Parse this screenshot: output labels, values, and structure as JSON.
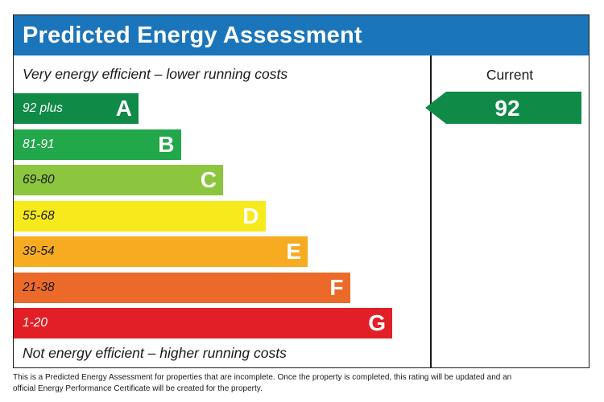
{
  "title": "Predicted Energy Assessment",
  "top_caption": "Very energy efficient – lower running costs",
  "bottom_caption": "Not energy efficient – higher running costs",
  "current_header": "Current",
  "footnote": "This is a Predicted Energy Assessment for properties that are incomplete. Once the property is completed, this rating will be updated and an official Energy Performance Certificate will be created for the property.",
  "colors": {
    "title_bar": "#1b75bb",
    "current_arrow": "#0f8a47"
  },
  "chart_data": {
    "type": "bar",
    "bands": [
      {
        "letter": "A",
        "range": "92 plus",
        "color": "#0f8a47",
        "range_color": "#ffffff"
      },
      {
        "letter": "B",
        "range": "81-91",
        "color": "#22a84a",
        "range_color": "#ffffff"
      },
      {
        "letter": "C",
        "range": "69-80",
        "color": "#8cc63f",
        "range_color": "#1a1a1a"
      },
      {
        "letter": "D",
        "range": "55-68",
        "color": "#f7ea1c",
        "range_color": "#1a1a1a"
      },
      {
        "letter": "E",
        "range": "39-54",
        "color": "#f6ab21",
        "range_color": "#1a1a1a"
      },
      {
        "letter": "F",
        "range": "21-38",
        "color": "#ec6a29",
        "range_color": "#1a1a1a"
      },
      {
        "letter": "G",
        "range": "1-20",
        "color": "#e21f26",
        "range_color": "#ffffff"
      }
    ],
    "current": {
      "value": 92,
      "band": "A"
    }
  }
}
